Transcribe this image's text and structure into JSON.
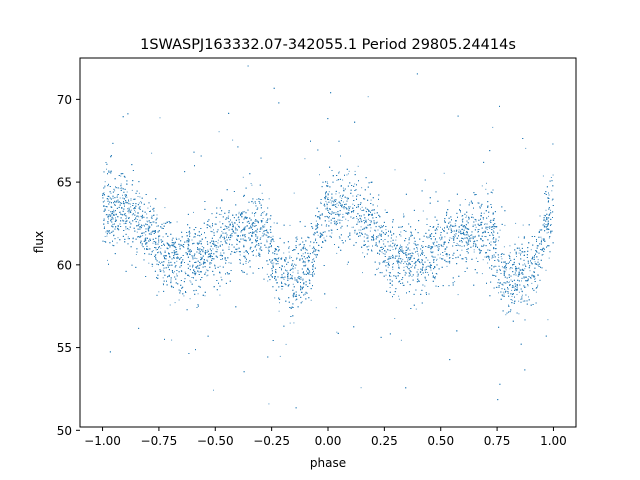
{
  "chart_data": {
    "type": "scatter",
    "title": "1SWASPJ163332.07-342055.1 Period 29805.24414s",
    "xlabel": "phase",
    "ylabel": "flux",
    "xlim": [
      -1.1,
      1.1
    ],
    "ylim": [
      50.2,
      72.5
    ],
    "xticks": [
      -1.0,
      -0.75,
      -0.5,
      -0.25,
      0.0,
      0.25,
      0.5,
      0.75,
      1.0
    ],
    "xtick_labels": [
      "−1.00",
      "−0.75",
      "−0.50",
      "−0.25",
      "0.00",
      "0.25",
      "0.50",
      "0.75",
      "1.00"
    ],
    "yticks": [
      50,
      55,
      60,
      65,
      70
    ],
    "ytick_labels": [
      "50",
      "55",
      "60",
      "65",
      "70"
    ],
    "grid": false,
    "marker_color": "#1f77b4",
    "series": [
      {
        "phase_curve": {
          "x": [
            -1.0,
            -0.9,
            -0.8,
            -0.7,
            -0.6,
            -0.5,
            -0.4,
            -0.3,
            -0.2,
            -0.1,
            0.0,
            0.1,
            0.2,
            0.3,
            0.4,
            0.5,
            0.6,
            0.7,
            0.8,
            0.9,
            1.0
          ],
          "y": [
            63.3,
            63.6,
            62.1,
            60.4,
            60.2,
            61.0,
            62.0,
            62.1,
            59.2,
            59.6,
            63.3,
            63.6,
            62.1,
            60.4,
            60.2,
            61.0,
            62.0,
            62.1,
            59.2,
            59.6,
            63.3
          ]
        },
        "n_points": 9000
      }
    ]
  }
}
